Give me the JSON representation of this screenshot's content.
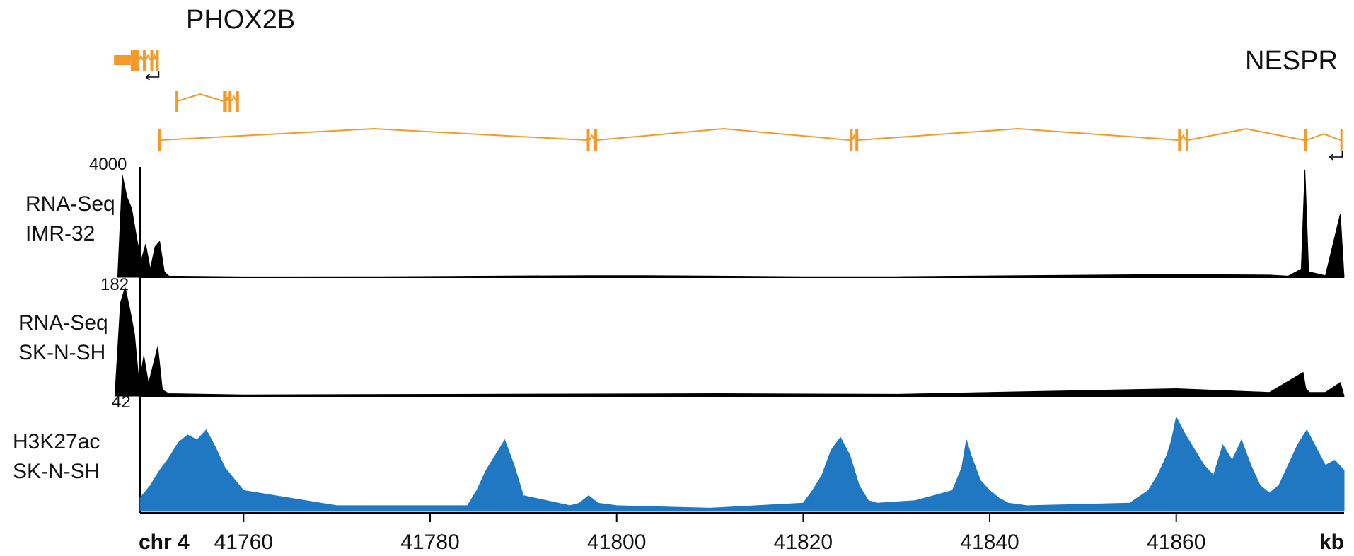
{
  "genes": {
    "phox2b_label": "PHOX2B",
    "nespr_label": "NESPR"
  },
  "colors": {
    "gene": "#f39a2b",
    "rna": "#000000",
    "h3k27ac": "#1f78c1",
    "axis": "#000000"
  },
  "tracks": [
    {
      "id": "rna-imr32",
      "label_line1": "RNA-Seq",
      "label_line2": "IMR-32",
      "max_label": "4000"
    },
    {
      "id": "rna-sknsh",
      "label_line1": "RNA-Seq",
      "label_line2": "SK-N-SH",
      "max_label": "182"
    },
    {
      "id": "h3k27ac-sknsh",
      "label_line1": "H3K27ac",
      "label_line2": "SK-N-SH",
      "max_label": "42"
    }
  ],
  "axis": {
    "chrom_label": "chr 4",
    "unit_label": "kb",
    "ticks": [
      "41760",
      "41780",
      "41800",
      "41820",
      "41840",
      "41860"
    ]
  },
  "chart_data": {
    "type": "area",
    "x_unit": "kb",
    "xlim": [
      41748.9,
      41878.0
    ],
    "series": [
      {
        "name": "RNA-Seq IMR-32",
        "ymax": 4000,
        "x": [
          41746.5,
          41747,
          41747.5,
          41748,
          41748.5,
          41749,
          41749.5,
          41750,
          41750.5,
          41751,
          41751.5,
          41752,
          41760,
          41775,
          41797,
          41803,
          41820,
          41830,
          41860,
          41870,
          41872,
          41873.4,
          41873.8,
          41874.2,
          41876,
          41877.6,
          41878
        ],
        "y": [
          0,
          3700,
          2900,
          2500,
          1500,
          600,
          1200,
          300,
          1100,
          1300,
          200,
          40,
          15,
          20,
          60,
          60,
          20,
          20,
          100,
          80,
          40,
          300,
          3900,
          200,
          60,
          2300,
          0
        ]
      },
      {
        "name": "RNA-Seq SK-N-SH",
        "ymax": 182,
        "x": [
          41746.2,
          41746.8,
          41747.3,
          41747.8,
          41748.3,
          41748.8,
          41749.3,
          41749.8,
          41750.3,
          41750.8,
          41751.3,
          41752,
          41760,
          41785,
          41811,
          41830,
          41860,
          41870,
          41873.6,
          41873.9,
          41874.3,
          41876,
          41877.6,
          41878
        ],
        "y": [
          0,
          150,
          175,
          140,
          100,
          20,
          65,
          20,
          50,
          80,
          10,
          4,
          2,
          3,
          4,
          3,
          12,
          6,
          38,
          12,
          6,
          6,
          22,
          0
        ]
      },
      {
        "name": "H3K27ac SK-N-SH",
        "ymax": 42,
        "x": [
          41748.9,
          41750,
          41751,
          41752,
          41753,
          41754,
          41755,
          41756,
          41757,
          41758,
          41760,
          41770,
          41784,
          41785,
          41786,
          41787,
          41788,
          41789,
          41790,
          41795,
          41796,
          41797,
          41798,
          41800,
          41810,
          41820,
          41821,
          41822,
          41823,
          41824,
          41825,
          41826,
          41827,
          41828,
          41832,
          41834,
          41836,
          41837,
          41837.5,
          41838,
          41839,
          41840,
          41841,
          41842,
          41844,
          41855,
          41857,
          41858,
          41859,
          41859.5,
          41860,
          41861,
          41862,
          41863,
          41864,
          41865,
          41866,
          41867,
          41868,
          41869,
          41870,
          41871,
          41872,
          41873,
          41874,
          41875,
          41876,
          41877,
          41878
        ],
        "y": [
          5,
          10,
          16,
          21,
          27,
          30,
          28,
          32,
          25,
          17,
          8,
          2,
          2,
          8,
          16,
          22,
          28,
          18,
          6,
          2,
          3,
          6,
          3,
          2,
          1,
          3,
          8,
          14,
          24,
          29,
          22,
          10,
          4,
          3,
          4,
          6,
          8,
          17,
          28,
          22,
          12,
          8,
          5,
          3,
          2,
          3,
          8,
          14,
          22,
          28,
          37,
          30,
          24,
          18,
          14,
          26,
          20,
          28,
          18,
          10,
          7,
          10,
          18,
          26,
          32,
          25,
          18,
          20,
          16
        ]
      }
    ],
    "gene_models": [
      {
        "name": "PHOX2B",
        "exons": [
          [
            41746.1,
            41747.9
          ],
          [
            41747.9,
            41748.8
          ],
          [
            41749.2,
            41749.5
          ],
          [
            41750.0,
            41750.3
          ],
          [
            41750.6,
            41750.9
          ]
        ],
        "strand": "-"
      },
      {
        "name": "",
        "exons": [
          [
            41752.7,
            41752.9
          ],
          [
            41757.8,
            41758.2
          ],
          [
            41758.4,
            41758.7
          ],
          [
            41759.2,
            41759.5
          ]
        ]
      },
      {
        "name": "",
        "exons": [
          [
            41750.8,
            41751.1
          ],
          [
            41796.8,
            41797.1
          ],
          [
            41797.6,
            41797.9
          ],
          [
            41825.0,
            41825.3
          ],
          [
            41825.6,
            41825.9
          ],
          [
            41860.2,
            41860.5
          ],
          [
            41861.0,
            41861.3
          ],
          [
            41873.7,
            41874.0
          ]
        ]
      },
      {
        "name": "NESPR",
        "exons": [
          [
            41873.7,
            41874.0
          ],
          [
            41877.6,
            41877.8
          ]
        ],
        "strand": "-"
      }
    ]
  }
}
